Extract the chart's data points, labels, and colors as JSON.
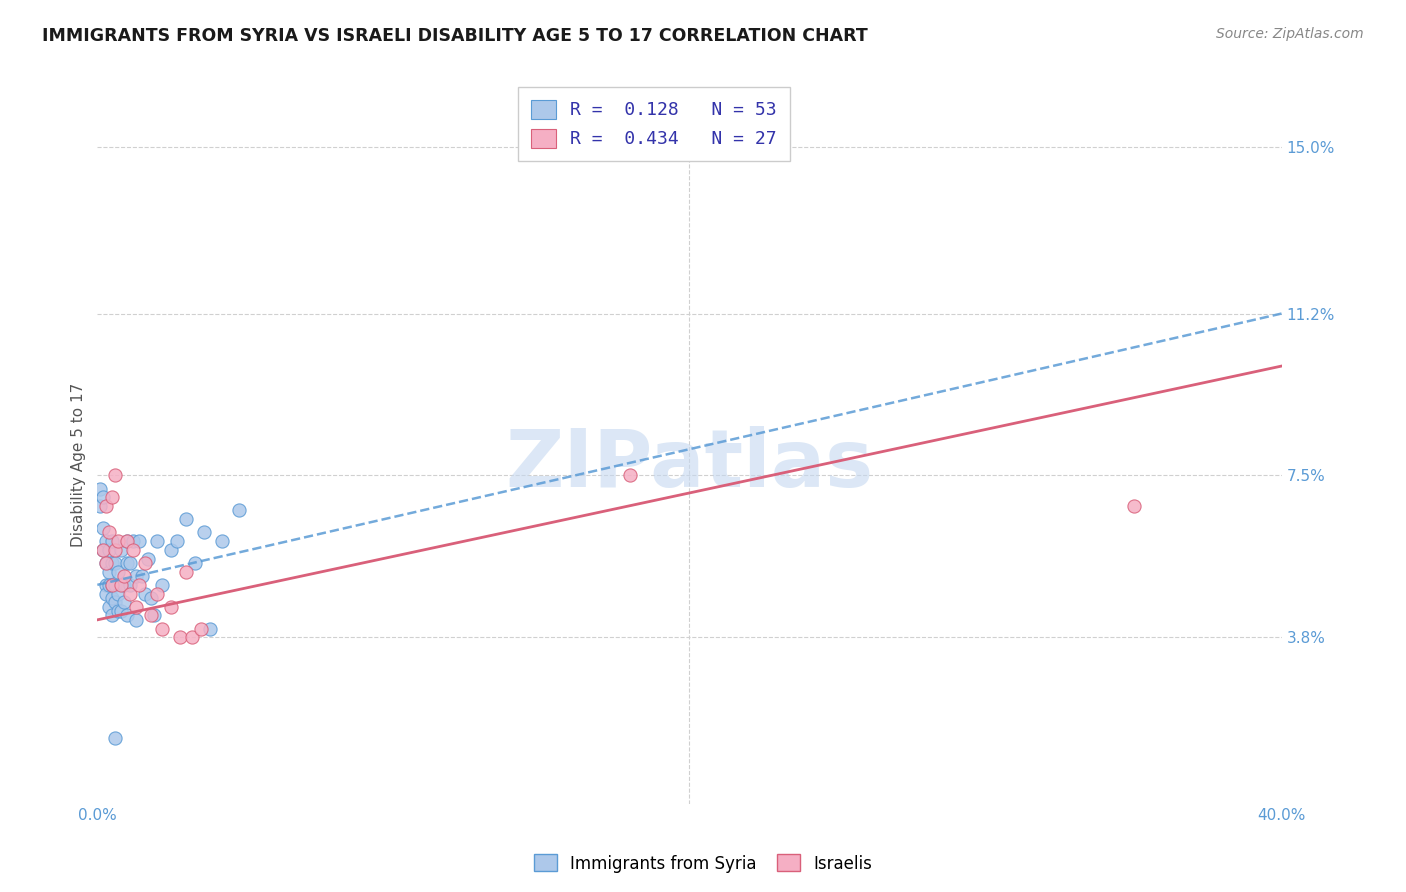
{
  "title": "IMMIGRANTS FROM SYRIA VS ISRAELI DISABILITY AGE 5 TO 17 CORRELATION CHART",
  "source": "Source: ZipAtlas.com",
  "ylabel": "Disability Age 5 to 17",
  "xlim": [
    0.0,
    0.4
  ],
  "ylim": [
    0.0,
    0.155
  ],
  "xtick_pos": [
    0.0,
    0.1,
    0.2,
    0.3,
    0.4
  ],
  "xtick_labels": [
    "0.0%",
    "",
    "",
    "",
    "40.0%"
  ],
  "ytick_values_right": [
    0.15,
    0.112,
    0.075,
    0.038
  ],
  "ytick_labels_right": [
    "15.0%",
    "11.2%",
    "7.5%",
    "3.8%"
  ],
  "legend_r1": "R =  0.128",
  "legend_n1": "N = 53",
  "legend_r2": "R =  0.434",
  "legend_n2": "N = 27",
  "color_blue": "#adc8ea",
  "color_pink": "#f5afc4",
  "line_blue": "#5b9bd5",
  "line_pink": "#d9607a",
  "background_color": "#ffffff",
  "blue_line_start_y": 0.05,
  "blue_line_end_y": 0.112,
  "pink_line_start_y": 0.042,
  "pink_line_end_y": 0.1,
  "blue_x": [
    0.001,
    0.001,
    0.002,
    0.002,
    0.002,
    0.003,
    0.003,
    0.003,
    0.003,
    0.004,
    0.004,
    0.004,
    0.004,
    0.005,
    0.005,
    0.005,
    0.005,
    0.005,
    0.006,
    0.006,
    0.006,
    0.007,
    0.007,
    0.007,
    0.008,
    0.008,
    0.009,
    0.009,
    0.01,
    0.01,
    0.01,
    0.011,
    0.011,
    0.012,
    0.013,
    0.013,
    0.014,
    0.015,
    0.016,
    0.017,
    0.018,
    0.019,
    0.02,
    0.022,
    0.025,
    0.027,
    0.03,
    0.033,
    0.036,
    0.038,
    0.042,
    0.048,
    0.006
  ],
  "blue_y": [
    0.068,
    0.072,
    0.063,
    0.058,
    0.07,
    0.06,
    0.055,
    0.05,
    0.048,
    0.058,
    0.053,
    0.05,
    0.045,
    0.06,
    0.055,
    0.05,
    0.047,
    0.043,
    0.055,
    0.05,
    0.046,
    0.053,
    0.048,
    0.044,
    0.058,
    0.044,
    0.05,
    0.046,
    0.06,
    0.055,
    0.043,
    0.055,
    0.05,
    0.06,
    0.052,
    0.042,
    0.06,
    0.052,
    0.048,
    0.056,
    0.047,
    0.043,
    0.06,
    0.05,
    0.058,
    0.06,
    0.065,
    0.055,
    0.062,
    0.04,
    0.06,
    0.067,
    0.015
  ],
  "pink_x": [
    0.002,
    0.003,
    0.003,
    0.004,
    0.005,
    0.005,
    0.006,
    0.006,
    0.007,
    0.008,
    0.009,
    0.01,
    0.011,
    0.012,
    0.013,
    0.014,
    0.016,
    0.018,
    0.02,
    0.022,
    0.025,
    0.028,
    0.03,
    0.032,
    0.035,
    0.35,
    0.18
  ],
  "pink_y": [
    0.058,
    0.068,
    0.055,
    0.062,
    0.07,
    0.05,
    0.075,
    0.058,
    0.06,
    0.05,
    0.052,
    0.06,
    0.048,
    0.058,
    0.045,
    0.05,
    0.055,
    0.043,
    0.048,
    0.04,
    0.045,
    0.038,
    0.053,
    0.038,
    0.04,
    0.068,
    0.075
  ],
  "watermark_text": "ZIPatlas",
  "watermark_color": "#c5d8f0",
  "grid_color": "#d0d0d0",
  "legend_box_color": "#f0f0f0"
}
